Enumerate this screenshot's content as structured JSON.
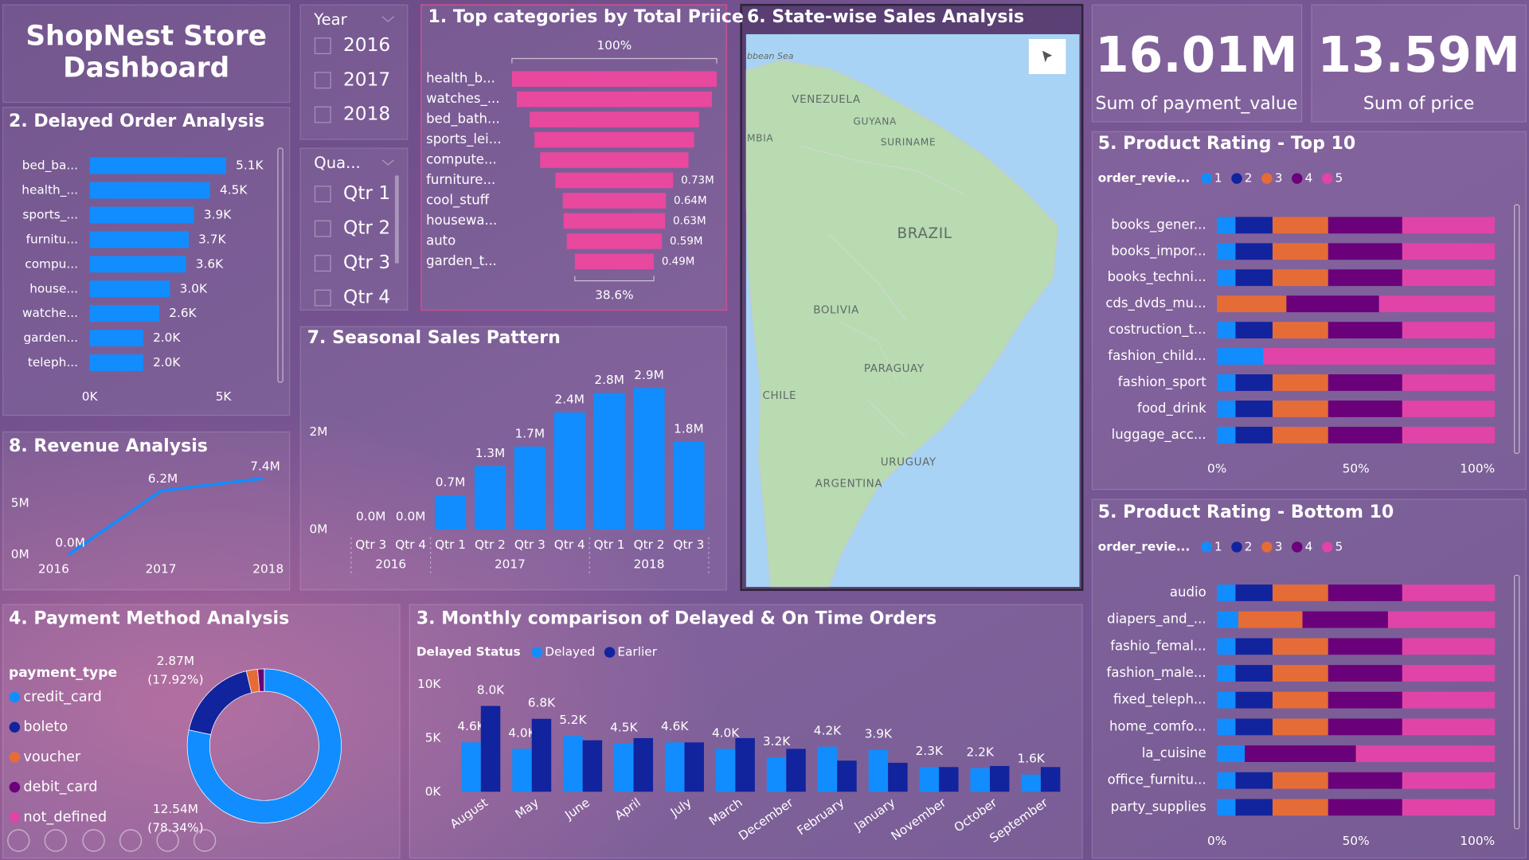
{
  "title": "ShopNest Store Dashboard",
  "slicers": [
    {
      "title": "Year",
      "options": [
        "2016",
        "2017",
        "2018"
      ]
    },
    {
      "title": "Qua...",
      "options": [
        "Qtr 1",
        "Qtr 2",
        "Qtr 3",
        "Qtr 4"
      ]
    }
  ],
  "kpis": [
    {
      "value": "16.01M",
      "label": "Sum of payment_value"
    },
    {
      "value": "13.59M",
      "label": "Sum of price"
    }
  ],
  "map": {
    "title": "6. State-wise Sales Analysis",
    "labels": [
      "bbean Sea",
      "VENEZUELA",
      "GUYANA",
      "SURINAME",
      "MBIA",
      "BRAZIL",
      "BOLIVIA",
      "PARAGUAY",
      "CHILE",
      "URUGUAY",
      "ARGENTINA"
    ]
  },
  "chart_data": [
    {
      "type": "hbar",
      "title": "2. Delayed Order Analysis",
      "categories": [
        "bed_ba...",
        "health_...",
        "sports_...",
        "furnitu...",
        "compu...",
        "house...",
        "watche...",
        "garden...",
        "teleph..."
      ],
      "values": [
        5100,
        4500,
        3900,
        3700,
        3600,
        3000,
        2600,
        2000,
        2000
      ],
      "value_labels": [
        "5.1K",
        "4.5K",
        "3.9K",
        "3.7K",
        "3.6K",
        "3.0K",
        "2.6K",
        "2.0K",
        "2.0K"
      ],
      "color": "#118dff",
      "xlim": [
        0,
        7000
      ],
      "xticks": [
        {
          "value": 0,
          "label": "0K"
        },
        {
          "value": 5000,
          "label": "5K"
        }
      ]
    },
    {
      "type": "funnel",
      "title": "1. Top categories by Total Priice",
      "categories": [
        "health_b...",
        "watches_...",
        "bed_bath...",
        "sports_lei...",
        "compute...",
        "furniture...",
        "cool_stuff",
        "housewa...",
        "auto",
        "garden_t..."
      ],
      "values": [
        1270000,
        1210000,
        1050000,
        990000,
        920000,
        730000,
        640000,
        630000,
        590000,
        490000
      ],
      "value_labels": [
        null,
        null,
        null,
        null,
        null,
        "0.73M",
        "0.64M",
        "0.63M",
        "0.59M",
        "0.49M"
      ],
      "color": "#e8489e",
      "top_label": "100%",
      "bottom_label": "38.6%"
    },
    {
      "type": "bar",
      "title": "7. Seasonal Sales Pattern",
      "groups": [
        {
          "name": "2016",
          "categories": [
            "Qtr 3",
            "Qtr 4"
          ]
        },
        {
          "name": "2017",
          "categories": [
            "Qtr 1",
            "Qtr 2",
            "Qtr 3",
            "Qtr 4"
          ]
        },
        {
          "name": "2018",
          "categories": [
            "Qtr 1",
            "Qtr 2",
            "Qtr 3"
          ]
        }
      ],
      "values": [
        0,
        0,
        700000,
        1300000,
        1700000,
        2400000,
        2800000,
        2900000,
        1800000
      ],
      "value_labels": [
        "0.0M",
        "0.0M",
        "0.7M",
        "1.3M",
        "1.7M",
        "2.4M",
        "2.8M",
        "2.9M",
        "1.8M"
      ],
      "color": "#118dff",
      "ylim": [
        0,
        3500000
      ],
      "yticks": [
        {
          "value": 0,
          "label": "0M"
        },
        {
          "value": 2000000,
          "label": "2M"
        }
      ]
    },
    {
      "type": "line",
      "title": "8. Revenue Analysis",
      "categories": [
        "2016",
        "2017",
        "2018"
      ],
      "values": [
        0,
        6200000,
        7400000
      ],
      "value_labels": [
        "0.0M",
        "6.2M",
        "7.4M"
      ],
      "color": "#118dff",
      "ylim": [
        0,
        8500000
      ],
      "yticks": [
        {
          "value": 0,
          "label": "0M"
        },
        {
          "value": 5000000,
          "label": "5M"
        }
      ]
    },
    {
      "type": "donut",
      "title": "4. Payment Method Analysis",
      "legend_title": "payment_type",
      "categories": [
        "credit_card",
        "boleto",
        "voucher",
        "debit_card",
        "not_defined"
      ],
      "values": [
        12540000,
        2870000,
        380000,
        220000,
        0
      ],
      "value_labels": [
        "12.54M (78.34%)",
        "2.87M (17.92%)",
        null,
        null,
        null
      ],
      "colors": [
        "#118dff",
        "#12239e",
        "#e66c37",
        "#6b007b",
        "#e044a7"
      ]
    },
    {
      "type": "grouped_bar",
      "title": "3. Monthly comparison of Delayed & On Time Orders",
      "legend_title": "Delayed Status",
      "categories": [
        "August",
        "May",
        "June",
        "April",
        "July",
        "March",
        "December",
        "February",
        "January",
        "November",
        "October",
        "September"
      ],
      "series": [
        {
          "name": "Delayed",
          "color": "#118dff",
          "values": [
            4600,
            4000,
            5200,
            4500,
            4600,
            4000,
            3200,
            4200,
            3900,
            2300,
            2200,
            1600
          ],
          "value_labels": [
            "4.6K",
            "4.0K",
            "5.2K",
            "4.5K",
            "4.6K",
            "4.0K",
            "3.2K",
            "4.2K",
            "3.9K",
            "2.3K",
            "2.2K",
            "1.6K"
          ]
        },
        {
          "name": "Earlier",
          "color": "#12239e",
          "values": [
            8000,
            6800,
            4800,
            5000,
            4600,
            5000,
            4000,
            2900,
            2700,
            2300,
            2400,
            2300
          ],
          "value_labels": [
            "8.0K",
            "6.8K",
            null,
            null,
            null,
            null,
            null,
            null,
            null,
            null,
            null,
            null
          ]
        }
      ],
      "ylim": [
        0,
        10000
      ],
      "yticks": [
        {
          "value": 0,
          "label": "0K"
        },
        {
          "value": 5000,
          "label": "5K"
        },
        {
          "value": 10000,
          "label": "10K"
        }
      ]
    },
    {
      "type": "stacked_hbar_100",
      "title": "5. Product Rating - Top 10",
      "legend_title": "order_revie...",
      "categories": [
        "books_gener...",
        "books_impor...",
        "books_techni...",
        "cds_dvds_mu...",
        "costruction_t...",
        "fashion_child...",
        "fashion_sport",
        "food_drink",
        "luggage_acc..."
      ],
      "series": [
        {
          "name": "1",
          "color": "#118dff",
          "values": [
            6.67,
            6.67,
            6.67,
            0,
            6.67,
            16.67,
            6.67,
            6.67,
            6.67
          ]
        },
        {
          "name": "2",
          "color": "#12239e",
          "values": [
            13.33,
            13.33,
            13.33,
            0,
            13.33,
            0,
            13.33,
            13.33,
            13.33
          ]
        },
        {
          "name": "3",
          "color": "#e66c37",
          "values": [
            20,
            20,
            20,
            25,
            20,
            0,
            20,
            20,
            20
          ]
        },
        {
          "name": "4",
          "color": "#6b007b",
          "values": [
            26.67,
            26.67,
            26.67,
            33.33,
            26.67,
            0,
            26.67,
            26.67,
            26.67
          ]
        },
        {
          "name": "5",
          "color": "#e044a7",
          "values": [
            33.33,
            33.33,
            33.33,
            41.67,
            33.33,
            83.33,
            33.33,
            33.33,
            33.33
          ]
        }
      ],
      "xlim": [
        0,
        100
      ],
      "xticks": [
        {
          "value": 0,
          "label": "0%"
        },
        {
          "value": 50,
          "label": "50%"
        },
        {
          "value": 100,
          "label": "100%"
        }
      ]
    },
    {
      "type": "stacked_hbar_100",
      "title": "5. Product Rating - Bottom 10",
      "legend_title": "order_revie...",
      "categories": [
        "audio",
        "diapers_and_...",
        "fashio_femal...",
        "fashion_male...",
        "fixed_teleph...",
        "home_comfo...",
        "la_cuisine",
        "office_furnitu...",
        "party_supplies"
      ],
      "series": [
        {
          "name": "1",
          "color": "#118dff",
          "values": [
            6.67,
            7.69,
            6.67,
            6.67,
            6.67,
            6.67,
            10,
            6.67,
            6.67
          ]
        },
        {
          "name": "2",
          "color": "#12239e",
          "values": [
            13.33,
            0,
            13.33,
            13.33,
            13.33,
            13.33,
            0,
            13.33,
            13.33
          ]
        },
        {
          "name": "3",
          "color": "#e66c37",
          "values": [
            20,
            23.08,
            20,
            20,
            20,
            20,
            0,
            20,
            20
          ]
        },
        {
          "name": "4",
          "color": "#6b007b",
          "values": [
            26.67,
            30.77,
            26.67,
            26.67,
            26.67,
            26.67,
            40,
            26.67,
            26.67
          ]
        },
        {
          "name": "5",
          "color": "#e044a7",
          "values": [
            33.33,
            38.46,
            33.33,
            33.33,
            33.33,
            33.33,
            50,
            33.33,
            33.33
          ]
        }
      ],
      "xlim": [
        0,
        100
      ],
      "xticks": [
        {
          "value": 0,
          "label": "0%"
        },
        {
          "value": 50,
          "label": "50%"
        },
        {
          "value": 100,
          "label": "100%"
        }
      ]
    }
  ]
}
